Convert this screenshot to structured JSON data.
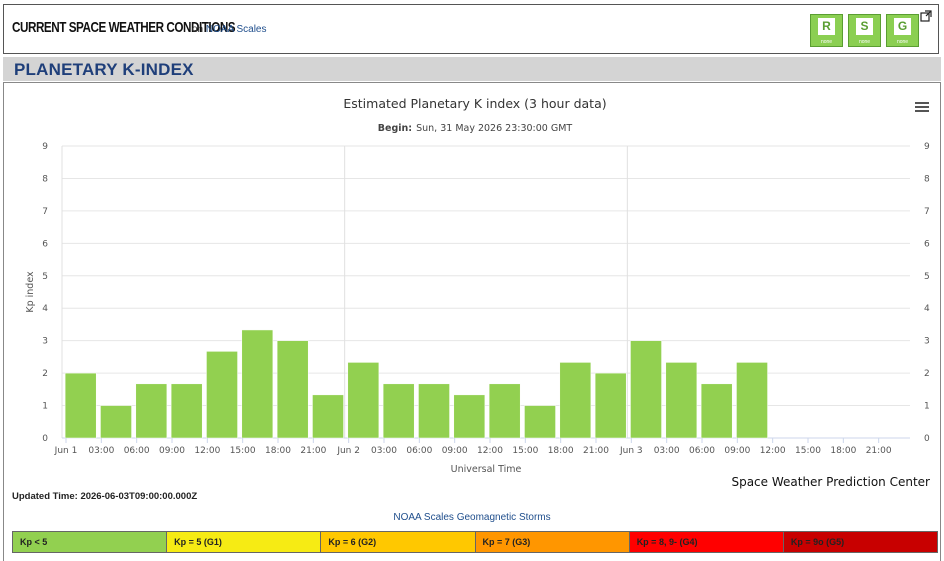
{
  "header": {
    "title": "CURRENT SPACE WEATHER CONDITIONS",
    "on_text": "on",
    "link_text": "NOAA Scales",
    "scales": [
      {
        "letter": "R",
        "sub": "none"
      },
      {
        "letter": "S",
        "sub": "none"
      },
      {
        "letter": "G",
        "sub": "none"
      }
    ]
  },
  "section_title": "PLANETARY K-INDEX",
  "chart_data": {
    "type": "bar",
    "title": "Estimated Planetary K index (3 hour data)",
    "subtitle_label": "Begin:",
    "subtitle_value": "Sun, 31 May 2026 23:30:00 GMT",
    "xlabel": "Universal Time",
    "ylabel": "Kp index",
    "ylim": [
      0,
      9
    ],
    "yticks": [
      0,
      1,
      2,
      3,
      4,
      5,
      6,
      7,
      8,
      9
    ],
    "xticks": [
      "Jun 1",
      "03:00",
      "06:00",
      "09:00",
      "12:00",
      "15:00",
      "18:00",
      "21:00",
      "Jun 2",
      "03:00",
      "06:00",
      "09:00",
      "12:00",
      "15:00",
      "18:00",
      "21:00",
      "Jun 3",
      "03:00",
      "06:00",
      "09:00",
      "12:00",
      "15:00",
      "18:00",
      "21:00"
    ],
    "values": [
      2,
      1,
      1.67,
      1.67,
      2.67,
      3.33,
      3,
      1.33,
      2.33,
      1.67,
      1.67,
      1.33,
      1.67,
      1,
      2.33,
      2,
      3,
      2.33,
      1.67,
      2.33
    ],
    "bar_color": "#92d050",
    "grid": true,
    "credit": "Space Weather Prediction Center"
  },
  "updated": "Updated Time: 2026-06-03T09:00:00.000Z",
  "storms_link": "NOAA Scales Geomagnetic Storms",
  "legend": [
    {
      "label": "Kp < 5",
      "color": "#92d050"
    },
    {
      "label": "Kp = 5 (G1)",
      "color": "#f6eb14"
    },
    {
      "label": "Kp = 6 (G2)",
      "color": "#ffc800"
    },
    {
      "label": "Kp = 7 (G3)",
      "color": "#ff9600"
    },
    {
      "label": "Kp = 8, 9- (G4)",
      "color": "#ff0000"
    },
    {
      "label": "Kp = 9o (G5)",
      "color": "#c80000"
    }
  ]
}
